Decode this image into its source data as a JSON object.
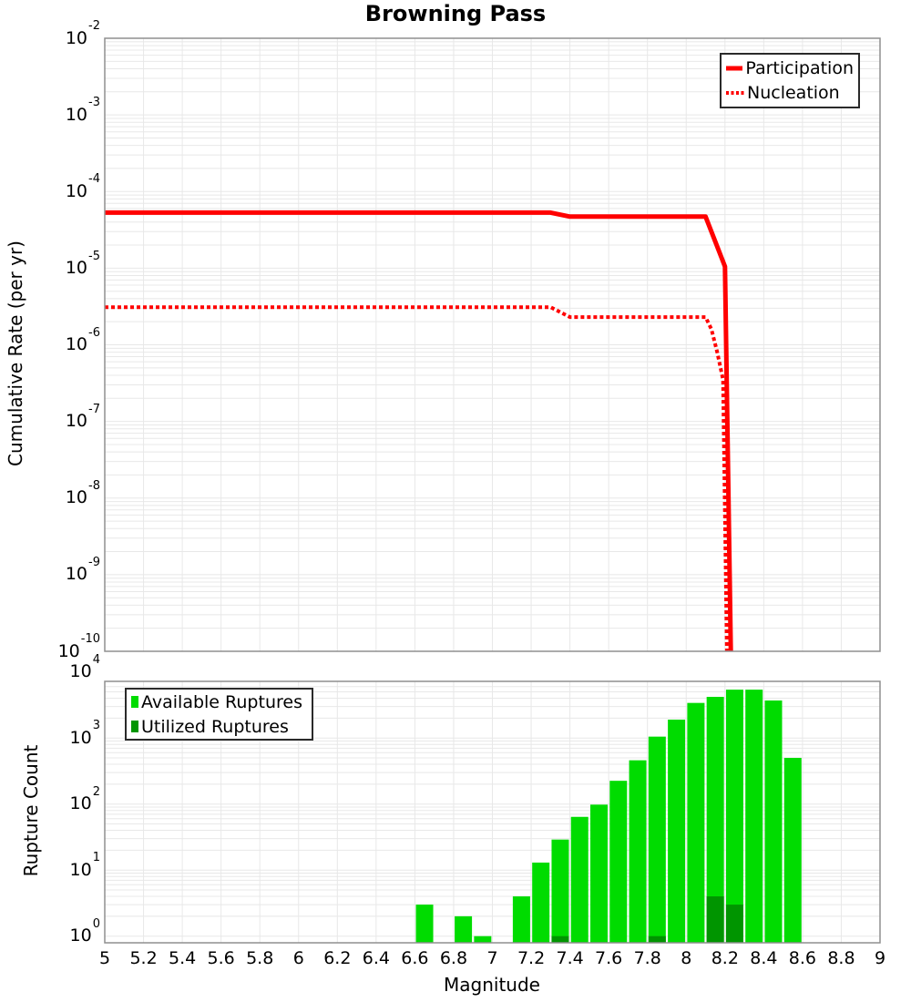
{
  "title": "Browning Pass",
  "colors": {
    "line_red": "#ff0000",
    "available_green": "#00dc00",
    "utilized_green": "#009500",
    "grid": "#e8e8e8",
    "frame": "#8f8f8f"
  },
  "x_axis": {
    "label": "Magnitude",
    "tick_labels": [
      "5",
      "5.2",
      "5.4",
      "5.6",
      "5.8",
      "6",
      "6.2",
      "6.4",
      "6.6",
      "6.8",
      "7",
      "7.2",
      "7.4",
      "7.6",
      "7.8",
      "8",
      "8.2",
      "8.4",
      "8.6",
      "8.8",
      "9"
    ]
  },
  "chart_data": [
    {
      "type": "line",
      "title": "Browning Pass",
      "ylabel": "Cumulative Rate (per yr)",
      "xlabel": "Magnitude",
      "xlim": [
        5,
        9
      ],
      "ylim": [
        1e-10,
        0.01
      ],
      "grid": true,
      "legend_position": "top-right",
      "y_tick_exponents": [
        -2,
        -3,
        -4,
        -5,
        -6,
        -7,
        -8,
        -9,
        -10
      ],
      "series": [
        {
          "name": "Participation",
          "style": "solid",
          "color": "#ff0000",
          "points": [
            [
              5.0,
              5.3e-05
            ],
            [
              7.3,
              5.3e-05
            ],
            [
              7.4,
              4.7e-05
            ],
            [
              8.1,
              4.7e-05
            ],
            [
              8.2,
              1.05e-05
            ],
            [
              8.23,
              1e-10
            ]
          ]
        },
        {
          "name": "Nucleation",
          "style": "dotted",
          "color": "#ff0000",
          "points": [
            [
              5.0,
              3.1e-06
            ],
            [
              7.3,
              3.1e-06
            ],
            [
              7.4,
              2.3e-06
            ],
            [
              8.1,
              2.3e-06
            ],
            [
              8.13,
              1.6e-06
            ],
            [
              8.16,
              8e-07
            ],
            [
              8.19,
              3.5e-07
            ],
            [
              8.21,
              1e-10
            ]
          ]
        }
      ]
    },
    {
      "type": "bar",
      "ylabel": "Rupture Count",
      "xlabel": "Magnitude",
      "xlim": [
        5,
        9
      ],
      "ylog": true,
      "grid": true,
      "legend_position": "top-left",
      "y_tick_exponents": [
        0,
        1,
        2,
        3,
        4
      ],
      "bin_width_mag": 0.1,
      "series": [
        {
          "name": "Available Ruptures",
          "color": "#00dc00",
          "x": [
            6.65,
            6.85,
            6.95,
            7.15,
            7.25,
            7.35,
            7.45,
            7.55,
            7.65,
            7.75,
            7.85,
            7.95,
            8.05,
            8.15,
            8.25,
            8.35,
            8.45,
            8.55
          ],
          "counts": [
            3,
            2,
            1,
            4,
            13,
            29,
            64,
            98,
            225,
            460,
            1050,
            1900,
            3400,
            4200,
            5400,
            5400,
            3700,
            500
          ]
        },
        {
          "name": "Utilized Ruptures",
          "color": "#009500",
          "x": [
            7.35,
            7.85,
            8.15,
            8.25
          ],
          "counts": [
            1,
            1,
            4,
            3
          ]
        }
      ]
    }
  ]
}
